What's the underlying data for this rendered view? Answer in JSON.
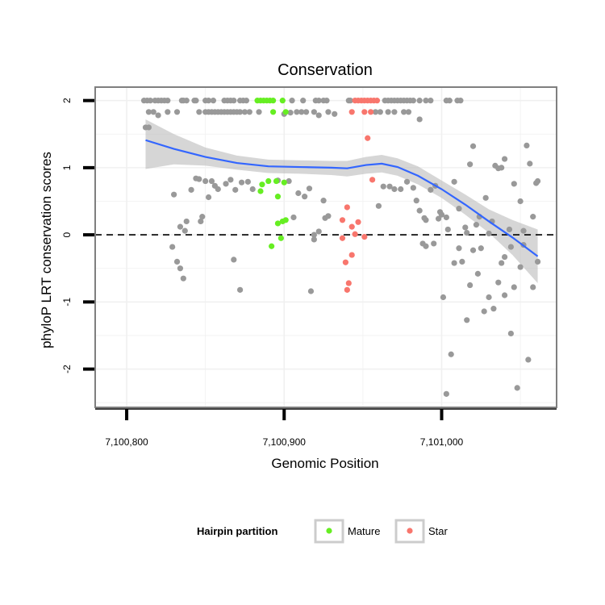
{
  "chart_data": {
    "type": "scatter",
    "title": "Conservation",
    "xlabel": "Genomic Position",
    "ylabel": "phyloP LRT conservation scores",
    "xlim": [
      7100780,
      7101073
    ],
    "ylim": [
      -2.57,
      2.2
    ],
    "x_ticks": [
      7100800,
      7100900,
      7101000
    ],
    "x_tick_labels": [
      "7,100,800",
      "7,100,900",
      "7,101,000"
    ],
    "y_ticks": [
      2,
      1,
      0,
      -1,
      -2
    ],
    "y_tick_labels": [
      "2",
      "1",
      "0",
      "-1",
      "-2"
    ],
    "grid": true,
    "reference_line": {
      "y": 0,
      "style": "dashed",
      "color": "#000000"
    },
    "colors": {
      "Other": "#999999",
      "Mature": "#66ee22",
      "Star": "#f8766d",
      "smooth_line": "#3366ff",
      "smooth_ribbon": "#bbbbbb"
    },
    "legend": {
      "title": "Hairpin partition",
      "placement": "bottom",
      "entries": [
        {
          "label": "Mature",
          "group": "Mature"
        },
        {
          "label": "Star",
          "group": "Star"
        }
      ]
    },
    "series": [
      {
        "group": "Other",
        "points": [
          [
            7100811,
            2
          ],
          [
            7100813,
            2
          ],
          [
            7100815,
            2
          ],
          [
            7100818,
            2
          ],
          [
            7100820,
            2
          ],
          [
            7100822,
            2
          ],
          [
            7100824,
            2
          ],
          [
            7100826,
            2
          ],
          [
            7100835,
            2
          ],
          [
            7100836,
            2
          ],
          [
            7100838,
            2
          ],
          [
            7100843,
            2
          ],
          [
            7100844,
            2
          ],
          [
            7100850,
            2
          ],
          [
            7100852,
            2
          ],
          [
            7100855,
            2
          ],
          [
            7100862,
            2
          ],
          [
            7100864,
            2
          ],
          [
            7100866,
            2
          ],
          [
            7100868,
            2
          ],
          [
            7100872,
            2
          ],
          [
            7100874,
            2
          ],
          [
            7100876,
            2
          ],
          [
            7100905,
            2
          ],
          [
            7100912,
            2
          ],
          [
            7100920,
            2
          ],
          [
            7100922,
            2
          ],
          [
            7100925,
            2
          ],
          [
            7100927,
            2
          ],
          [
            7100941,
            2
          ],
          [
            7100942,
            2
          ],
          [
            7100964,
            2
          ],
          [
            7100966,
            2
          ],
          [
            7100968,
            2
          ],
          [
            7100970,
            2
          ],
          [
            7100972,
            2
          ],
          [
            7100974,
            2
          ],
          [
            7100976,
            2
          ],
          [
            7100978,
            2
          ],
          [
            7100980,
            2
          ],
          [
            7100982,
            2
          ],
          [
            7100986,
            2
          ],
          [
            7100990,
            2
          ],
          [
            7100993,
            2
          ],
          [
            7101003,
            2
          ],
          [
            7101005,
            2
          ],
          [
            7101010,
            2
          ],
          [
            7101012,
            2
          ],
          [
            7100814,
            1.83
          ],
          [
            7100817,
            1.83
          ],
          [
            7100826,
            1.83
          ],
          [
            7100832,
            1.83
          ],
          [
            7100846,
            1.83
          ],
          [
            7100850,
            1.83
          ],
          [
            7100852,
            1.83
          ],
          [
            7100854,
            1.83
          ],
          [
            7100856,
            1.83
          ],
          [
            7100858,
            1.83
          ],
          [
            7100860,
            1.83
          ],
          [
            7100862,
            1.83
          ],
          [
            7100864,
            1.83
          ],
          [
            7100866,
            1.83
          ],
          [
            7100868,
            1.83
          ],
          [
            7100870,
            1.83
          ],
          [
            7100872,
            1.83
          ],
          [
            7100875,
            1.83
          ],
          [
            7100878,
            1.83
          ],
          [
            7100884,
            1.83
          ],
          [
            7100900,
            1.8
          ],
          [
            7100904,
            1.82
          ],
          [
            7100908,
            1.83
          ],
          [
            7100911,
            1.83
          ],
          [
            7100914,
            1.83
          ],
          [
            7100919,
            1.83
          ],
          [
            7100922,
            1.78
          ],
          [
            7100928,
            1.83
          ],
          [
            7100932,
            1.8
          ],
          [
            7100958,
            1.83
          ],
          [
            7100961,
            1.83
          ],
          [
            7100966,
            1.83
          ],
          [
            7100970,
            1.83
          ],
          [
            7100976,
            1.83
          ],
          [
            7100979,
            1.83
          ],
          [
            7100986,
            1.72
          ],
          [
            7100820,
            1.78
          ],
          [
            7100812,
            1.6
          ],
          [
            7100814,
            1.6
          ],
          [
            7100830,
            0.6
          ],
          [
            7100834,
            0.12
          ],
          [
            7100837,
            0.06
          ],
          [
            7100838,
            0.2
          ],
          [
            7100841,
            0.67
          ],
          [
            7100844,
            0.84
          ],
          [
            7100846,
            0.83
          ],
          [
            7100848,
            0.27
          ],
          [
            7100847,
            0.2
          ],
          [
            7100850,
            0.8
          ],
          [
            7100852,
            0.56
          ],
          [
            7100854,
            0.8
          ],
          [
            7100856,
            0.73
          ],
          [
            7100858,
            0.68
          ],
          [
            7100863,
            0.76
          ],
          [
            7100866,
            0.82
          ],
          [
            7100869,
            0.67
          ],
          [
            7100873,
            0.78
          ],
          [
            7100877,
            0.79
          ],
          [
            7100880,
            0.68
          ],
          [
            7100896,
            0.81
          ],
          [
            7100903,
            0.8
          ],
          [
            7100906,
            0.26
          ],
          [
            7100909,
            0.62
          ],
          [
            7100913,
            0.57
          ],
          [
            7100916,
            0.69
          ],
          [
            7100919,
            0
          ],
          [
            7100922,
            0.05
          ],
          [
            7100925,
            0.51
          ],
          [
            7100926,
            0.25
          ],
          [
            7100928,
            0.28
          ],
          [
            7100960,
            0.43
          ],
          [
            7100963,
            0.72
          ],
          [
            7100967,
            0.72
          ],
          [
            7100970,
            0.68
          ],
          [
            7100974,
            0.68
          ],
          [
            7100978,
            0.79
          ],
          [
            7100982,
            0.7
          ],
          [
            7100984,
            0.51
          ],
          [
            7100986,
            0.36
          ],
          [
            7100989,
            0.25
          ],
          [
            7100990,
            0.22
          ],
          [
            7100993,
            0.67
          ],
          [
            7100996,
            0.73
          ],
          [
            7100998,
            0.24
          ],
          [
            7100999,
            0.34
          ],
          [
            7101000,
            0.3
          ],
          [
            7101003,
            0.26
          ],
          [
            7101004,
            0.08
          ],
          [
            7101008,
            0.79
          ],
          [
            7101011,
            0.39
          ],
          [
            7101015,
            0.11
          ],
          [
            7101016,
            0.03
          ],
          [
            7101018,
            1.05
          ],
          [
            7101020,
            1.32
          ],
          [
            7101022,
            0.15
          ],
          [
            7101024,
            0.27
          ],
          [
            7101028,
            0.55
          ],
          [
            7101030,
            0.02
          ],
          [
            7101032,
            0.2
          ],
          [
            7101034,
            1.03
          ],
          [
            7101036,
            0.99
          ],
          [
            7101038,
            1
          ],
          [
            7101040,
            1.13
          ],
          [
            7101043,
            0.08
          ],
          [
            7101046,
            0.76
          ],
          [
            7101050,
            0.5
          ],
          [
            7101052,
            0.06
          ],
          [
            7101054,
            1.33
          ],
          [
            7101056,
            1.06
          ],
          [
            7101058,
            0.27
          ],
          [
            7101060,
            0.77
          ],
          [
            7101061,
            0.8
          ],
          [
            7100829,
            -0.18
          ],
          [
            7100832,
            -0.4
          ],
          [
            7100834,
            -0.5
          ],
          [
            7100836,
            -0.65
          ],
          [
            7100868,
            -0.37
          ],
          [
            7100872,
            -0.82
          ],
          [
            7100917,
            -0.84
          ],
          [
            7100919,
            -0.07
          ],
          [
            7100988,
            -0.13
          ],
          [
            7100990,
            -0.17
          ],
          [
            7100995,
            -0.13
          ],
          [
            7101001,
            -0.93
          ],
          [
            7101003,
            -2.37
          ],
          [
            7101006,
            -1.78
          ],
          [
            7101008,
            -0.42
          ],
          [
            7101011,
            -0.2
          ],
          [
            7101013,
            -0.4
          ],
          [
            7101016,
            -1.27
          ],
          [
            7101018,
            -0.75
          ],
          [
            7101020,
            -0.23
          ],
          [
            7101023,
            -0.58
          ],
          [
            7101025,
            -0.2
          ],
          [
            7101027,
            -1.14
          ],
          [
            7101030,
            -0.93
          ],
          [
            7101033,
            -1.1
          ],
          [
            7101036,
            -0.71
          ],
          [
            7101040,
            -0.33
          ],
          [
            7101044,
            -1.47
          ],
          [
            7101046,
            -0.78
          ],
          [
            7101048,
            -2.28
          ],
          [
            7101050,
            -0.48
          ],
          [
            7101052,
            -0.15
          ],
          [
            7101055,
            -1.86
          ],
          [
            7101058,
            -0.78
          ],
          [
            7101061,
            -0.4
          ],
          [
            7101040,
            -0.9
          ],
          [
            7101038,
            -0.42
          ],
          [
            7101044,
            -0.18
          ]
        ]
      },
      {
        "group": "Mature",
        "points": [
          [
            7100883,
            2
          ],
          [
            7100885,
            2
          ],
          [
            7100887,
            2
          ],
          [
            7100889,
            2
          ],
          [
            7100891,
            2
          ],
          [
            7100893,
            2
          ],
          [
            7100899,
            2
          ],
          [
            7100893,
            1.83
          ],
          [
            7100901,
            1.83
          ],
          [
            7100886,
            0.75
          ],
          [
            7100890,
            0.8
          ],
          [
            7100895,
            0.8
          ],
          [
            7100900,
            0.78
          ],
          [
            7100885,
            0.65
          ],
          [
            7100896,
            0.57
          ],
          [
            7100896,
            0.17
          ],
          [
            7100899,
            0.2
          ],
          [
            7100901,
            0.22
          ],
          [
            7100898,
            -0.05
          ],
          [
            7100892,
            -0.17
          ]
        ]
      },
      {
        "group": "Star",
        "points": [
          [
            7100945,
            2
          ],
          [
            7100947,
            2
          ],
          [
            7100949,
            2
          ],
          [
            7100951,
            2
          ],
          [
            7100953,
            2
          ],
          [
            7100955,
            2
          ],
          [
            7100957,
            2
          ],
          [
            7100959,
            2
          ],
          [
            7100943,
            1.83
          ],
          [
            7100951,
            1.83
          ],
          [
            7100955,
            1.83
          ],
          [
            7100953,
            1.44
          ],
          [
            7100956,
            0.82
          ],
          [
            7100937,
            0.22
          ],
          [
            7100940,
            0.41
          ],
          [
            7100943,
            0.12
          ],
          [
            7100945,
            0.01
          ],
          [
            7100947,
            0.19
          ],
          [
            7100951,
            -0.03
          ],
          [
            7100937,
            -0.05
          ],
          [
            7100939,
            -0.41
          ],
          [
            7100943,
            -0.3
          ],
          [
            7100941,
            -0.72
          ],
          [
            7100940,
            -0.82
          ]
        ]
      }
    ],
    "smooth": {
      "x": [
        7100812,
        7100830,
        7100850,
        7100870,
        7100890,
        7100910,
        7100930,
        7100940,
        7100952,
        7100962,
        7100972,
        7100985,
        7101000,
        7101015,
        7101030,
        7101045,
        7101061
      ],
      "y": [
        1.41,
        1.28,
        1.16,
        1.07,
        1.02,
        1.01,
        1.0,
        0.99,
        1.04,
        1.06,
        1.01,
        0.88,
        0.68,
        0.45,
        0.2,
        -0.04,
        -0.32
      ],
      "lower": [
        0.98,
        1.05,
        1.03,
        0.97,
        0.92,
        0.91,
        0.89,
        0.87,
        0.91,
        0.93,
        0.88,
        0.75,
        0.55,
        0.3,
        0.03,
        -0.3,
        -0.72
      ],
      "upper": [
        1.72,
        1.5,
        1.3,
        1.18,
        1.12,
        1.11,
        1.1,
        1.1,
        1.16,
        1.19,
        1.14,
        1.02,
        0.81,
        0.6,
        0.38,
        0.22,
        0.08
      ]
    }
  }
}
